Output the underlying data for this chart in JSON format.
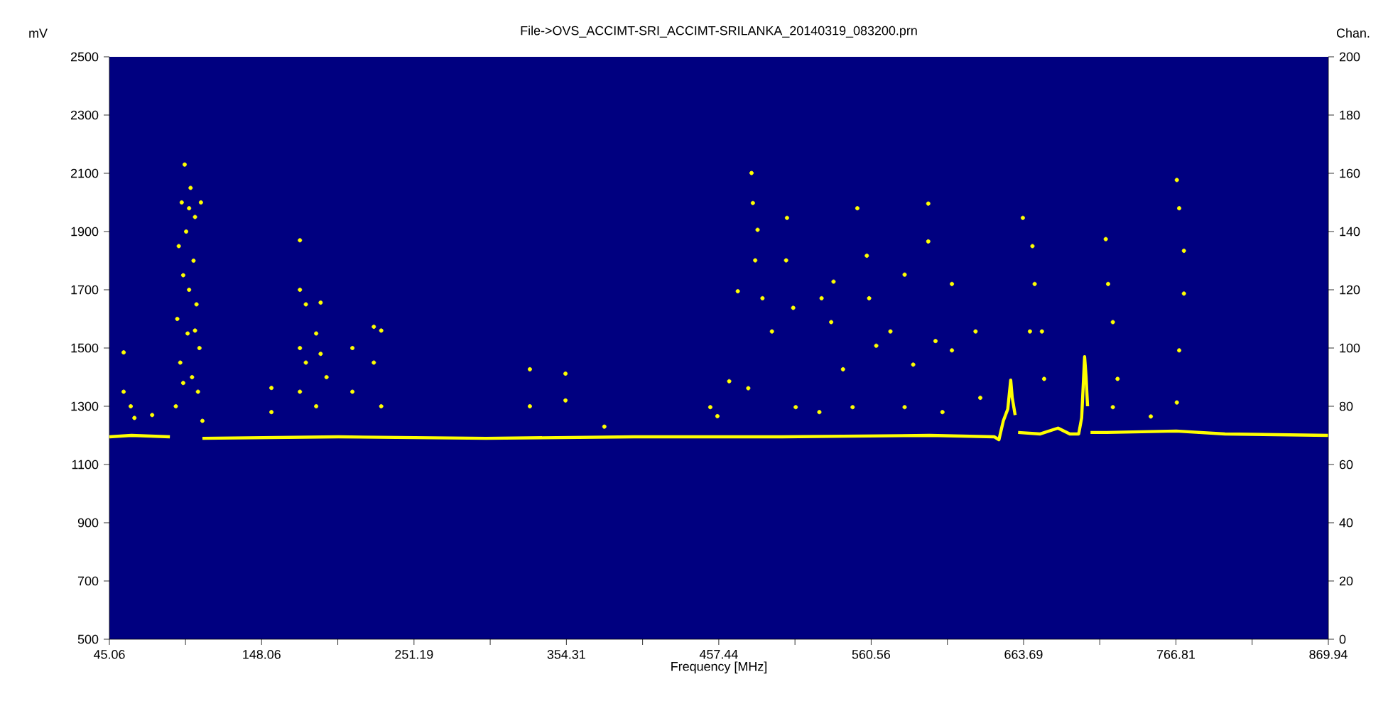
{
  "chart_data": {
    "type": "scatter",
    "title": "File->OVS_ACCIMT-SRI_ACCIMT-SRILANKA_20140319_083200.prn",
    "xlabel": "Frequency [MHz]",
    "ylabel": "mV",
    "y2label": "Chan.",
    "xlim": [
      45.06,
      869.94
    ],
    "xticks": [
      45.06,
      {
        "value": 96.56,
        "label": null
      },
      148.06,
      {
        "value": 199.63,
        "label": null
      },
      251.19,
      {
        "value": 302.75,
        "label": null
      },
      354.31,
      {
        "value": 405.88,
        "label": null
      },
      457.44,
      {
        "value": 509.0,
        "label": null
      },
      560.56,
      {
        "value": 612.13,
        "label": null
      },
      663.69,
      {
        "value": 715.25,
        "label": null
      },
      766.81,
      {
        "value": 818.38,
        "label": null
      },
      869.94
    ],
    "ylim": [
      500,
      2500
    ],
    "yticks": [
      500,
      700,
      900,
      1100,
      1300,
      1500,
      1700,
      1900,
      2100,
      2300,
      2500
    ],
    "y2lim": [
      0,
      200
    ],
    "y2ticks": [
      0,
      20,
      40,
      60,
      80,
      100,
      120,
      140,
      160,
      180,
      200
    ],
    "series": [
      {
        "type": "line",
        "color": "#ffff00",
        "line_style": "solid",
        "x": [
          45.06,
          60,
          86,
          88,
          108,
          200,
          300,
          400,
          500,
          600,
          644,
          647,
          650,
          653,
          655,
          656,
          658,
          659,
          660,
          675,
          687,
          695,
          701,
          703,
          705,
          706,
          707,
          708,
          709,
          720,
          767,
          800,
          869.94
        ],
        "values": [
          1195,
          1200,
          1195,
          null,
          1190,
          1195,
          1190,
          1195,
          1195,
          1200,
          1195,
          1185,
          1250,
          1290,
          1390,
          1330,
          1270,
          null,
          1210,
          1205,
          1225,
          1205,
          1205,
          1260,
          1470,
          1400,
          1300,
          null,
          1210,
          1210,
          1215,
          1205,
          1200
        ]
      },
      {
        "color": "#ffff00",
        "marker": "circle",
        "x": [
          54.7,
          54.7,
          59.5,
          62,
          74,
          90,
          91,
          92,
          93,
          94,
          95,
          96,
          97,
          98,
          99,
          100,
          101,
          102,
          103,
          104,
          105,
          106,
          107,
          108,
          95,
          99,
          103,
          154.7,
          154.7,
          174,
          174,
          174,
          174,
          178,
          178,
          185,
          185,
          188,
          188,
          192,
          209.5,
          209.5,
          224,
          224,
          229,
          229,
          329.6,
          329.6,
          353.7,
          353.7,
          380,
          479.6,
          480.5,
          483.7,
          482.1,
          470.3,
          464.5,
          487,
          493.4,
          503.6,
          503,
          507.8,
          527,
          535.1,
          533.5,
          541.5,
          551.2,
          557.6,
          559.2,
          564,
          573.6,
          583.2,
          589,
          599.2,
          599.2,
          604.1,
          615.2,
          615.2,
          631.2,
          634.4,
          663.2,
          669.7,
          671.2,
          668,
          676.1,
          677.6,
          719.3,
          720.9,
          724.1,
          727.3,
          767.4,
          769,
          772.2,
          772.2,
          769,
          767.4,
          451.7,
          456.5,
          477.4,
          509.5,
          525.5,
          548,
          583.2,
          608.8,
          724.1,
          749.8
        ],
        "values": [
          1485,
          1350,
          1300,
          1260,
          1270,
          1300,
          1600,
          1850,
          1450,
          2000,
          1750,
          2130,
          1900,
          1550,
          1700,
          2050,
          1400,
          1800,
          1950,
          1650,
          1350,
          1500,
          2000,
          1250,
          1380,
          1980,
          1560,
          1363,
          1280,
          1870,
          1700,
          1500,
          1350,
          1650,
          1450,
          1550,
          1300,
          1656,
          1480,
          1400,
          1500,
          1350,
          1573,
          1450,
          1560,
          1300,
          1427,
          1300,
          1412,
          1320,
          1230,
          2101,
          1998,
          1906,
          1801,
          1695,
          1386,
          1671,
          1557,
          1947,
          1801,
          1638,
          1671,
          1728,
          1589,
          1427,
          1980,
          1817,
          1671,
          1508,
          1557,
          1752,
          1443,
          1996,
          1866,
          1524,
          1720,
          1492,
          1557,
          1329,
          1947,
          1850,
          1720,
          1557,
          1557,
          1394,
          1874,
          1720,
          1589,
          1394,
          2077,
          1980,
          1834,
          1687,
          1492,
          1313,
          1297,
          1266,
          1362,
          1297,
          1280,
          1297,
          1297,
          1280,
          1297,
          1265
        ]
      }
    ]
  }
}
